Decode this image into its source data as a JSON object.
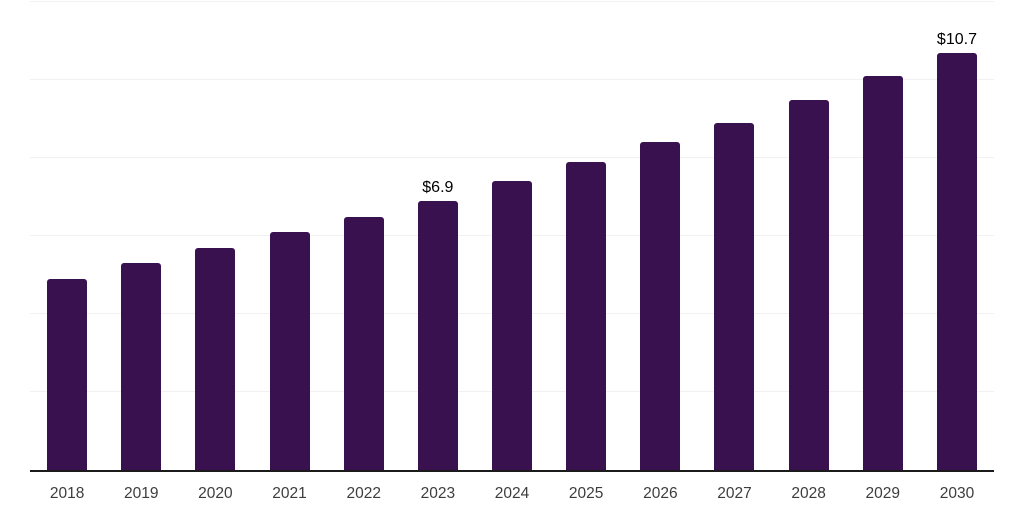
{
  "chart_data": {
    "type": "bar",
    "title": "",
    "xlabel": "",
    "ylabel": "",
    "categories": [
      "2018",
      "2019",
      "2020",
      "2021",
      "2022",
      "2023",
      "2024",
      "2025",
      "2026",
      "2027",
      "2028",
      "2029",
      "2030"
    ],
    "values": [
      4.9,
      5.3,
      5.7,
      6.1,
      6.5,
      6.9,
      7.4,
      7.9,
      8.4,
      8.9,
      9.5,
      10.1,
      10.7
    ],
    "bar_value_labels": [
      null,
      null,
      null,
      null,
      null,
      "$6.9",
      null,
      null,
      null,
      null,
      null,
      null,
      "$10.7"
    ],
    "ylim": [
      0,
      12
    ],
    "gridline_values": [
      2,
      4,
      6,
      8,
      10,
      12
    ],
    "grid": true,
    "legend": false,
    "colors": {
      "bar": "#38114E",
      "axis_line": "#1b1b1b",
      "gridline": "#f1f1f1",
      "tick_label": "#3d3d3d",
      "value_label": "#000000",
      "background": "#ffffff"
    }
  }
}
